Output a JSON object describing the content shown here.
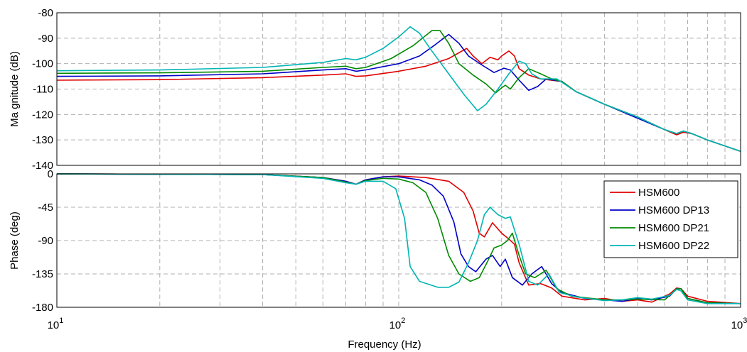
{
  "chart_data": [
    {
      "type": "line",
      "id": "magnitude",
      "ylabel": "Ma gnitude (dB)",
      "xlabel": "",
      "xscale": "log",
      "xlim": [
        10,
        1000
      ],
      "ylim": [
        -140,
        -80
      ],
      "yticks": [
        -80,
        -90,
        -100,
        -110,
        -120,
        -130,
        -140
      ],
      "xticks": [],
      "grid": true,
      "series": [
        {
          "name": "HSM600",
          "color": "#e00000",
          "points": [
            [
              10,
              -106.5
            ],
            [
              20,
              -106.3
            ],
            [
              40,
              -105.5
            ],
            [
              60,
              -104.5
            ],
            [
              70,
              -104
            ],
            [
              75,
              -105
            ],
            [
              80,
              -104.8
            ],
            [
              100,
              -103
            ],
            [
              120,
              -101
            ],
            [
              140,
              -98
            ],
            [
              158,
              -94
            ],
            [
              165,
              -97
            ],
            [
              175,
              -100
            ],
            [
              185,
              -97.5
            ],
            [
              195,
              -98.5
            ],
            [
              200,
              -97
            ],
            [
              210,
              -95
            ],
            [
              218,
              -97
            ],
            [
              225,
              -102
            ],
            [
              240,
              -104.5
            ],
            [
              260,
              -106
            ],
            [
              300,
              -107
            ],
            [
              330,
              -111
            ],
            [
              400,
              -116
            ],
            [
              500,
              -121
            ],
            [
              600,
              -126
            ],
            [
              650,
              -128
            ],
            [
              680,
              -127
            ],
            [
              720,
              -127.5
            ],
            [
              800,
              -130
            ],
            [
              1000,
              -134.5
            ]
          ]
        },
        {
          "name": "HSM600 DP13",
          "color": "#0000c8",
          "points": [
            [
              10,
              -105
            ],
            [
              20,
              -104.8
            ],
            [
              40,
              -104
            ],
            [
              60,
              -102.5
            ],
            [
              70,
              -102
            ],
            [
              75,
              -103
            ],
            [
              80,
              -102.5
            ],
            [
              100,
              -100
            ],
            [
              115,
              -97
            ],
            [
              128,
              -92.5
            ],
            [
              140,
              -88.5
            ],
            [
              150,
              -92
            ],
            [
              160,
              -97
            ],
            [
              175,
              -100.5
            ],
            [
              190,
              -103.5
            ],
            [
              203,
              -101.8
            ],
            [
              212,
              -102.5
            ],
            [
              225,
              -106.5
            ],
            [
              240,
              -110.5
            ],
            [
              255,
              -109
            ],
            [
              270,
              -106
            ],
            [
              300,
              -107
            ],
            [
              330,
              -111
            ],
            [
              400,
              -116
            ],
            [
              500,
              -121.5
            ],
            [
              600,
              -126
            ],
            [
              650,
              -127.5
            ],
            [
              680,
              -126.5
            ],
            [
              720,
              -127.5
            ],
            [
              800,
              -130
            ],
            [
              1000,
              -134.5
            ]
          ]
        },
        {
          "name": "HSM600 DP21",
          "color": "#008a00",
          "points": [
            [
              10,
              -103.8
            ],
            [
              20,
              -103.6
            ],
            [
              40,
              -103
            ],
            [
              60,
              -101.5
            ],
            [
              70,
              -101
            ],
            [
              75,
              -102
            ],
            [
              80,
              -101.5
            ],
            [
              95,
              -98
            ],
            [
              110,
              -93
            ],
            [
              125,
              -87
            ],
            [
              132,
              -87
            ],
            [
              140,
              -92
            ],
            [
              150,
              -100
            ],
            [
              165,
              -104.5
            ],
            [
              180,
              -108
            ],
            [
              192,
              -111.5
            ],
            [
              200,
              -109.5
            ],
            [
              205,
              -108.5
            ],
            [
              212,
              -110
            ],
            [
              225,
              -105.5
            ],
            [
              240,
              -102
            ],
            [
              260,
              -104
            ],
            [
              280,
              -106
            ],
            [
              300,
              -107
            ],
            [
              330,
              -111
            ],
            [
              400,
              -116
            ],
            [
              500,
              -121
            ],
            [
              600,
              -126
            ],
            [
              650,
              -127.5
            ],
            [
              680,
              -126.5
            ],
            [
              720,
              -127.5
            ],
            [
              800,
              -130
            ],
            [
              1000,
              -134.5
            ]
          ]
        },
        {
          "name": "HSM600 DP22",
          "color": "#00b4b4",
          "points": [
            [
              10,
              -102.8
            ],
            [
              20,
              -102.5
            ],
            [
              40,
              -101.5
            ],
            [
              60,
              -99.5
            ],
            [
              70,
              -98
            ],
            [
              75,
              -98.5
            ],
            [
              80,
              -97.5
            ],
            [
              90,
              -94
            ],
            [
              100,
              -89.5
            ],
            [
              108,
              -85.5
            ],
            [
              115,
              -88
            ],
            [
              125,
              -95
            ],
            [
              140,
              -104
            ],
            [
              155,
              -112
            ],
            [
              170,
              -118.5
            ],
            [
              180,
              -116
            ],
            [
              195,
              -110
            ],
            [
              210,
              -104
            ],
            [
              225,
              -99
            ],
            [
              235,
              -100
            ],
            [
              245,
              -104
            ],
            [
              260,
              -106
            ],
            [
              290,
              -106
            ],
            [
              330,
              -111
            ],
            [
              400,
              -116
            ],
            [
              500,
              -121
            ],
            [
              600,
              -126
            ],
            [
              650,
              -127.5
            ],
            [
              680,
              -126.5
            ],
            [
              720,
              -127.5
            ],
            [
              800,
              -130
            ],
            [
              1000,
              -134.5
            ]
          ]
        }
      ]
    },
    {
      "type": "line",
      "id": "phase",
      "ylabel": "Phase (deg)",
      "xlabel": "Frequency (Hz)",
      "xscale": "log",
      "xlim": [
        10,
        1000
      ],
      "ylim": [
        -180,
        0
      ],
      "yticks": [
        0,
        -45,
        -90,
        -135,
        -180
      ],
      "xticks": [
        10,
        100,
        1000
      ],
      "xtick_bases": [
        "10",
        "10",
        "10"
      ],
      "xtick_exps": [
        "1",
        "2",
        "3"
      ],
      "grid": true,
      "legend_position": "right",
      "series": [
        {
          "name": "HSM600",
          "color": "#e00000",
          "points": [
            [
              10,
              0
            ],
            [
              40,
              -1
            ],
            [
              60,
              -5
            ],
            [
              70,
              -10
            ],
            [
              75,
              -14
            ],
            [
              80,
              -8
            ],
            [
              90,
              -4
            ],
            [
              100,
              -3
            ],
            [
              120,
              -5
            ],
            [
              140,
              -10
            ],
            [
              155,
              -25
            ],
            [
              165,
              -50
            ],
            [
              172,
              -80
            ],
            [
              178,
              -85
            ],
            [
              188,
              -66
            ],
            [
              200,
              -80
            ],
            [
              210,
              -88
            ],
            [
              218,
              -95
            ],
            [
              225,
              -120
            ],
            [
              240,
              -150
            ],
            [
              260,
              -148
            ],
            [
              280,
              -154
            ],
            [
              300,
              -165
            ],
            [
              350,
              -170
            ],
            [
              400,
              -168
            ],
            [
              450,
              -172
            ],
            [
              500,
              -170
            ],
            [
              550,
              -173
            ],
            [
              620,
              -162
            ],
            [
              650,
              -154
            ],
            [
              670,
              -155
            ],
            [
              700,
              -165
            ],
            [
              800,
              -172
            ],
            [
              1000,
              -175
            ]
          ]
        },
        {
          "name": "HSM600 DP13",
          "color": "#0000c8",
          "points": [
            [
              10,
              0
            ],
            [
              40,
              -1
            ],
            [
              60,
              -5
            ],
            [
              70,
              -10
            ],
            [
              75,
              -14
            ],
            [
              80,
              -8
            ],
            [
              90,
              -4
            ],
            [
              100,
              -4
            ],
            [
              115,
              -8
            ],
            [
              125,
              -15
            ],
            [
              135,
              -30
            ],
            [
              145,
              -65
            ],
            [
              152,
              -108
            ],
            [
              160,
              -125
            ],
            [
              168,
              -132
            ],
            [
              180,
              -115
            ],
            [
              188,
              -110
            ],
            [
              198,
              -125
            ],
            [
              205,
              -115
            ],
            [
              215,
              -140
            ],
            [
              230,
              -150
            ],
            [
              245,
              -135
            ],
            [
              262,
              -125
            ],
            [
              280,
              -148
            ],
            [
              300,
              -160
            ],
            [
              350,
              -168
            ],
            [
              400,
              -170
            ],
            [
              450,
              -172
            ],
            [
              500,
              -168
            ],
            [
              550,
              -170
            ],
            [
              620,
              -165
            ],
            [
              650,
              -155
            ],
            [
              670,
              -155
            ],
            [
              700,
              -168
            ],
            [
              800,
              -174
            ],
            [
              1000,
              -175
            ]
          ]
        },
        {
          "name": "HSM600 DP21",
          "color": "#008a00",
          "points": [
            [
              10,
              0
            ],
            [
              40,
              -1
            ],
            [
              60,
              -5
            ],
            [
              70,
              -11
            ],
            [
              75,
              -14
            ],
            [
              80,
              -9
            ],
            [
              90,
              -6
            ],
            [
              100,
              -7
            ],
            [
              110,
              -12
            ],
            [
              120,
              -25
            ],
            [
              130,
              -60
            ],
            [
              140,
              -110
            ],
            [
              150,
              -135
            ],
            [
              162,
              -145
            ],
            [
              172,
              -140
            ],
            [
              182,
              -118
            ],
            [
              190,
              -100
            ],
            [
              200,
              -96
            ],
            [
              208,
              -90
            ],
            [
              215,
              -80
            ],
            [
              225,
              -110
            ],
            [
              235,
              -135
            ],
            [
              250,
              -140
            ],
            [
              270,
              -130
            ],
            [
              290,
              -155
            ],
            [
              320,
              -165
            ],
            [
              400,
              -170
            ],
            [
              450,
              -170
            ],
            [
              500,
              -169
            ],
            [
              600,
              -170
            ],
            [
              650,
              -155
            ],
            [
              670,
              -155
            ],
            [
              700,
              -168
            ],
            [
              800,
              -174
            ],
            [
              1000,
              -175
            ]
          ]
        },
        {
          "name": "HSM600 DP22",
          "color": "#00b4b4",
          "points": [
            [
              10,
              0
            ],
            [
              40,
              -1
            ],
            [
              60,
              -6
            ],
            [
              70,
              -12
            ],
            [
              75,
              -14
            ],
            [
              80,
              -10
            ],
            [
              90,
              -10
            ],
            [
              98,
              -20
            ],
            [
              104,
              -60
            ],
            [
              108,
              -125
            ],
            [
              115,
              -145
            ],
            [
              130,
              -153
            ],
            [
              140,
              -153
            ],
            [
              150,
              -146
            ],
            [
              160,
              -120
            ],
            [
              170,
              -90
            ],
            [
              178,
              -55
            ],
            [
              185,
              -45
            ],
            [
              195,
              -55
            ],
            [
              205,
              -60
            ],
            [
              212,
              -58
            ],
            [
              225,
              -95
            ],
            [
              240,
              -145
            ],
            [
              255,
              -150
            ],
            [
              275,
              -135
            ],
            [
              295,
              -160
            ],
            [
              330,
              -166
            ],
            [
              400,
              -171
            ],
            [
              450,
              -170
            ],
            [
              500,
              -167
            ],
            [
              550,
              -169
            ],
            [
              620,
              -164
            ],
            [
              650,
              -156
            ],
            [
              670,
              -158
            ],
            [
              700,
              -170
            ],
            [
              800,
              -175
            ],
            [
              1000,
              -175
            ]
          ]
        }
      ]
    }
  ]
}
